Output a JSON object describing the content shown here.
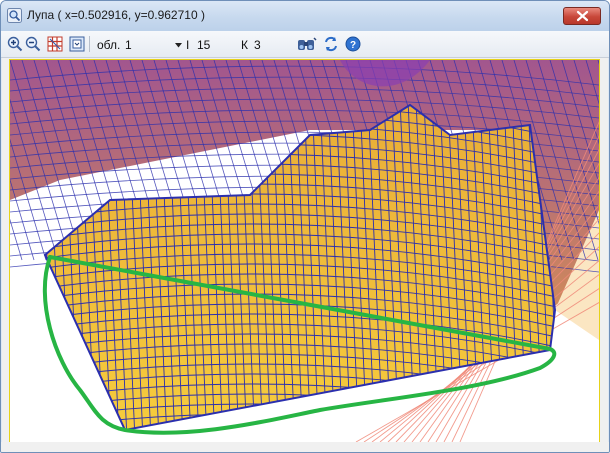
{
  "window": {
    "title": "Лупа ( x=0.502916, y=0.962710 )"
  },
  "toolbar": {
    "region_label": "обл.",
    "region_value": "1",
    "i_label": "I",
    "i_value": "15",
    "k_label": "К",
    "k_value": "3",
    "icons": [
      "zoom-in-icon",
      "zoom-out-icon",
      "grid-icon",
      "fit-window-icon",
      "binoculars-icon",
      "refresh-icon",
      "help-icon"
    ]
  },
  "colors": {
    "mesh_fill": "#f2c232",
    "mesh_edge": "#2b2fae",
    "mesh_purple": "#a0569a",
    "highlight": "#27b544",
    "grid_pink": "#f08a7a"
  }
}
